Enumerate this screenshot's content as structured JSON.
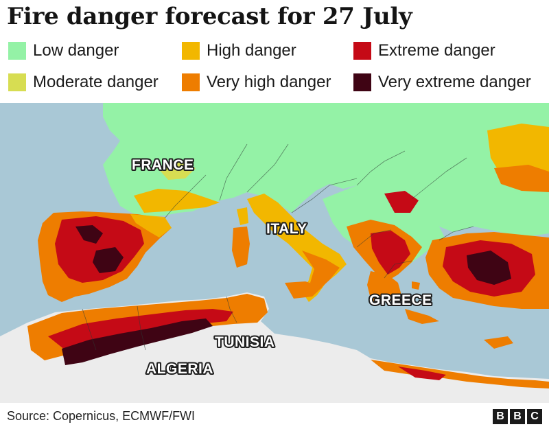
{
  "title": "Fire danger forecast for 27 July",
  "legend": [
    {
      "label": "Low danger",
      "color": "#94f2a6"
    },
    {
      "label": "High danger",
      "color": "#f2b700"
    },
    {
      "label": "Extreme danger",
      "color": "#c50a16"
    },
    {
      "label": "Moderate danger",
      "color": "#d7dd52"
    },
    {
      "label": "Very high danger",
      "color": "#ee7d00"
    },
    {
      "label": "Very extreme danger",
      "color": "#3f0414"
    }
  ],
  "map": {
    "sea_color": "#a9c8d6",
    "no_data_land_color": "#ececec",
    "labels": {
      "france": "FRANCE",
      "italy": "ITALY",
      "greece": "GREECE",
      "tunisia": "TUNISIA",
      "algeria": "ALGERIA"
    }
  },
  "footer": {
    "source": "Source: Copernicus, ECMWF/FWI",
    "logo": [
      "B",
      "B",
      "C"
    ]
  }
}
